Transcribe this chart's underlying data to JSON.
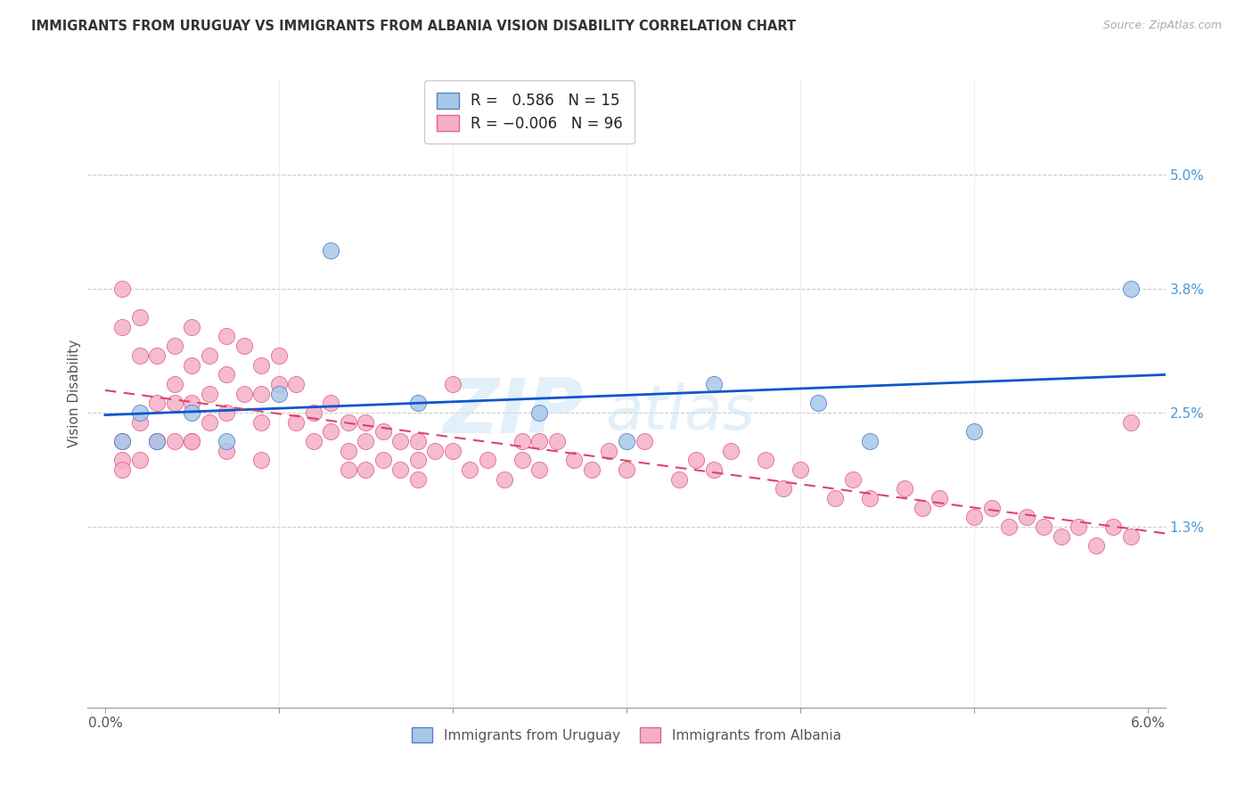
{
  "title": "IMMIGRANTS FROM URUGUAY VS IMMIGRANTS FROM ALBANIA VISION DISABILITY CORRELATION CHART",
  "source": "Source: ZipAtlas.com",
  "ylabel": "Vision Disability",
  "xlim": [
    0.0,
    0.06
  ],
  "ylim": [
    -0.006,
    0.06
  ],
  "yticks": [
    0.013,
    0.025,
    0.038,
    0.05
  ],
  "ytick_labels": [
    "1.3%",
    "2.5%",
    "3.8%",
    "5.0%"
  ],
  "xtick_positions": [
    0.0,
    0.01,
    0.02,
    0.03,
    0.04,
    0.05,
    0.06
  ],
  "xtick_labels_shown": {
    "0.0": "0.0%",
    "0.06": "6.0%"
  },
  "watermark_top": "ZIP",
  "watermark_bot": "atlas",
  "uruguay_color": "#a8c8e8",
  "albania_color": "#f5b0c8",
  "uruguay_edge": "#5580cc",
  "albania_edge": "#e06888",
  "line_uruguay_color": "#1155cc",
  "line_albania_color": "#dd4466",
  "R_uruguay": 0.586,
  "N_uruguay": 15,
  "R_albania": -0.006,
  "N_albania": 96,
  "uruguay_x": [
    0.001,
    0.002,
    0.003,
    0.005,
    0.007,
    0.01,
    0.013,
    0.018,
    0.025,
    0.03,
    0.035,
    0.041,
    0.044,
    0.05,
    0.059
  ],
  "uruguay_y": [
    0.022,
    0.025,
    0.022,
    0.025,
    0.022,
    0.027,
    0.042,
    0.026,
    0.025,
    0.022,
    0.028,
    0.026,
    0.022,
    0.023,
    0.038
  ],
  "albania_x": [
    0.001,
    0.001,
    0.001,
    0.001,
    0.002,
    0.002,
    0.002,
    0.003,
    0.003,
    0.003,
    0.004,
    0.004,
    0.004,
    0.004,
    0.005,
    0.005,
    0.005,
    0.005,
    0.006,
    0.006,
    0.006,
    0.007,
    0.007,
    0.007,
    0.007,
    0.008,
    0.008,
    0.009,
    0.009,
    0.009,
    0.01,
    0.01,
    0.011,
    0.011,
    0.012,
    0.012,
    0.013,
    0.013,
    0.014,
    0.014,
    0.015,
    0.015,
    0.015,
    0.016,
    0.016,
    0.017,
    0.017,
    0.018,
    0.018,
    0.018,
    0.019,
    0.02,
    0.02,
    0.021,
    0.022,
    0.023,
    0.024,
    0.024,
    0.025,
    0.025,
    0.026,
    0.027,
    0.028,
    0.029,
    0.03,
    0.031,
    0.033,
    0.034,
    0.035,
    0.036,
    0.038,
    0.039,
    0.04,
    0.042,
    0.043,
    0.044,
    0.046,
    0.047,
    0.048,
    0.05,
    0.051,
    0.052,
    0.053,
    0.054,
    0.055,
    0.056,
    0.057,
    0.058,
    0.059,
    0.059,
    0.001,
    0.002,
    0.003,
    0.005,
    0.009,
    0.014
  ],
  "albania_y": [
    0.02,
    0.022,
    0.034,
    0.038,
    0.024,
    0.031,
    0.035,
    0.026,
    0.031,
    0.022,
    0.028,
    0.026,
    0.022,
    0.032,
    0.03,
    0.026,
    0.022,
    0.034,
    0.031,
    0.027,
    0.024,
    0.033,
    0.029,
    0.025,
    0.021,
    0.032,
    0.027,
    0.03,
    0.027,
    0.024,
    0.031,
    0.028,
    0.028,
    0.024,
    0.025,
    0.022,
    0.026,
    0.023,
    0.024,
    0.021,
    0.024,
    0.022,
    0.019,
    0.023,
    0.02,
    0.022,
    0.019,
    0.022,
    0.02,
    0.018,
    0.021,
    0.028,
    0.021,
    0.019,
    0.02,
    0.018,
    0.022,
    0.02,
    0.022,
    0.019,
    0.022,
    0.02,
    0.019,
    0.021,
    0.019,
    0.022,
    0.018,
    0.02,
    0.019,
    0.021,
    0.02,
    0.017,
    0.019,
    0.016,
    0.018,
    0.016,
    0.017,
    0.015,
    0.016,
    0.014,
    0.015,
    0.013,
    0.014,
    0.013,
    0.012,
    0.013,
    0.011,
    0.013,
    0.012,
    0.024,
    0.019,
    0.02,
    0.022,
    0.022,
    0.02,
    0.019
  ]
}
